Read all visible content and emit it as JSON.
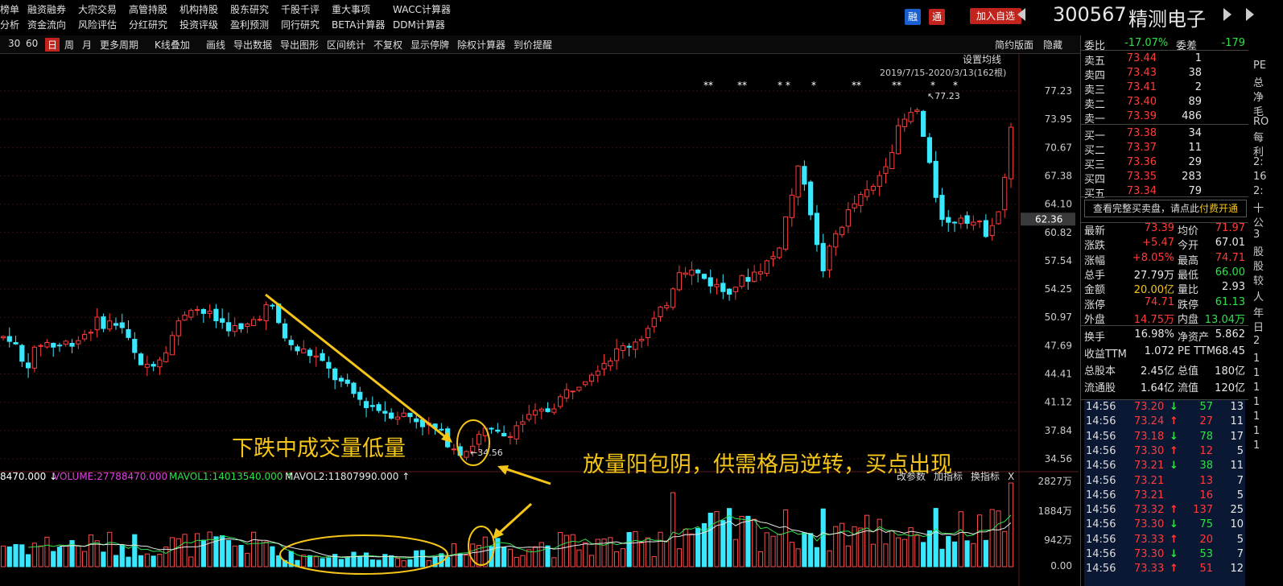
{
  "menu": {
    "row1": [
      "榜单",
      "融资融券",
      "大宗交易",
      "高管持股",
      "机构持股",
      "股东研究",
      "千股千评",
      "重大事项",
      "WACC计算器"
    ],
    "row2": [
      "分析",
      "资金流向",
      "风险评估",
      "分红研究",
      "投资评级",
      "盈利预测",
      "同行研究",
      "BETA计算器",
      "DDM计算器"
    ]
  },
  "header": {
    "rong": "融",
    "tong": "通",
    "add_favorite": "加入自选",
    "stock_code": "300567",
    "stock_name": "精测电子",
    "colors": {
      "rong": "#1a5fd0",
      "tong": "#c0241c",
      "accent": "#c0241c"
    }
  },
  "toolbar": {
    "items": [
      "30",
      "60",
      "日",
      "周",
      "月",
      "更多周期",
      "K线叠加",
      "画线",
      "导出数据",
      "导出图形",
      "区间统计",
      "不复权",
      "显示停牌",
      "除权计算器",
      "到价提醒"
    ],
    "active": "日",
    "right_items": [
      "简约版面",
      "隐藏"
    ]
  },
  "chart": {
    "ma_setting": "设置均线",
    "range_label": "2019/7/15-2020/3/13(162根)",
    "stars": [
      "**",
      "**",
      "* *",
      "*",
      "**",
      "**",
      "*",
      "*",
      "**"
    ],
    "price_ticks": [
      "77.23",
      "73.95",
      "70.67",
      "67.38",
      "64.10",
      "60.82",
      "57.54",
      "54.25",
      "50.97",
      "47.69",
      "44.41",
      "41.12",
      "37.84",
      "34.56"
    ],
    "current_price_tag": "62.36",
    "high_label": "77.23",
    "low_label": "34.56",
    "annotation_left": "下跌中成交量低量",
    "annotation_right": "放量阳包阴，供需格局逆转，买点出现",
    "volume_header": {
      "prefix": "8470.000",
      "volume": "VOLUME:27788470.000",
      "mavol1": "MAVOL1:14013540.000",
      "mavol2": "MAVOL2:11807990.000"
    },
    "volume_buttons": [
      "改参数",
      "加指标",
      "换指标",
      "X"
    ],
    "volume_ticks": [
      "2827万",
      "1884万",
      "942万",
      "0.00"
    ]
  },
  "panel": {
    "weibi_label": "委比",
    "weibi_value": "-17.07%",
    "weicha_label": "委差",
    "weicha_value": "-179",
    "asks": [
      {
        "label": "卖五",
        "price": "73.44",
        "vol": "1"
      },
      {
        "label": "卖四",
        "price": "73.43",
        "vol": "38"
      },
      {
        "label": "卖三",
        "price": "73.41",
        "vol": "2"
      },
      {
        "label": "卖二",
        "price": "73.40",
        "vol": "89"
      },
      {
        "label": "卖一",
        "price": "73.39",
        "vol": "486"
      }
    ],
    "bids": [
      {
        "label": "买一",
        "price": "73.38",
        "vol": "34"
      },
      {
        "label": "买二",
        "price": "73.37",
        "vol": "11"
      },
      {
        "label": "买三",
        "price": "73.36",
        "vol": "29"
      },
      {
        "label": "买四",
        "price": "73.35",
        "vol": "283"
      },
      {
        "label": "买五",
        "price": "73.34",
        "vol": "79"
      }
    ],
    "depth_link": "查看完整买卖盘，请点此",
    "depth_link_highlight": "付费开通",
    "stats": [
      {
        "l1": "最新",
        "v1": "73.39",
        "c1": "red",
        "l2": "均价",
        "v2": "71.97",
        "c2": "red"
      },
      {
        "l1": "涨跌",
        "v1": "+5.47",
        "c1": "red",
        "l2": "今开",
        "v2": "67.01",
        "c2": "white"
      },
      {
        "l1": "涨幅",
        "v1": "+8.05%",
        "c1": "red",
        "l2": "最高",
        "v2": "74.71",
        "c2": "red"
      },
      {
        "l1": "总手",
        "v1": "27.79万",
        "c1": "white",
        "l2": "最低",
        "v2": "66.00",
        "c2": "green"
      },
      {
        "l1": "金额",
        "v1": "20.00亿",
        "c1": "yellow",
        "l2": "量比",
        "v2": "2.93",
        "c2": "white"
      },
      {
        "l1": "涨停",
        "v1": "74.71",
        "c1": "red",
        "l2": "跌停",
        "v2": "61.13",
        "c2": "green"
      },
      {
        "l1": "外盘",
        "v1": "14.75万",
        "c1": "red",
        "l2": "内盘",
        "v2": "13.04万",
        "c2": "green"
      }
    ],
    "stats2": [
      {
        "l1": "换手",
        "v1": "16.98%",
        "l2": "净资产",
        "v2": "5.862"
      },
      {
        "l1": "收益TTM",
        "v1": "1.072",
        "l2": "PE TTM",
        "v2": "68.45"
      },
      {
        "l1": "总股本",
        "v1": "2.45亿",
        "l2": "总值",
        "v2": "180亿"
      },
      {
        "l1": "流通股",
        "v1": "1.64亿",
        "l2": "流值",
        "v2": "120亿"
      }
    ],
    "ticks": [
      {
        "t": "14:56",
        "p": "73.20",
        "d": "down",
        "v": "57",
        "n": "13"
      },
      {
        "t": "14:56",
        "p": "73.24",
        "d": "up",
        "v": "27",
        "n": "11"
      },
      {
        "t": "14:56",
        "p": "73.18",
        "d": "down",
        "v": "78",
        "n": "17"
      },
      {
        "t": "14:56",
        "p": "73.30",
        "d": "up",
        "v": "12",
        "n": "5"
      },
      {
        "t": "14:56",
        "p": "73.21",
        "d": "down",
        "v": "38",
        "n": "11"
      },
      {
        "t": "14:56",
        "p": "73.21",
        "d": "",
        "v": "13",
        "n": "7"
      },
      {
        "t": "14:56",
        "p": "73.21",
        "d": "",
        "v": "16",
        "n": "5"
      },
      {
        "t": "14:56",
        "p": "73.32",
        "d": "up",
        "v": "137",
        "n": "25"
      },
      {
        "t": "14:56",
        "p": "73.30",
        "d": "down",
        "v": "75",
        "n": "10"
      },
      {
        "t": "14:56",
        "p": "73.33",
        "d": "up",
        "v": "20",
        "n": "5"
      },
      {
        "t": "14:56",
        "p": "73.30",
        "d": "down",
        "v": "53",
        "n": "7"
      },
      {
        "t": "14:56",
        "p": "73.33",
        "d": "up",
        "v": "51",
        "n": "12"
      }
    ],
    "edge_chars": [
      "PE",
      "总",
      "净",
      "毛",
      "RO",
      "每",
      "利",
      "2:",
      "16",
      "2:",
      "十",
      "公",
      "3",
      "股",
      "股",
      "较",
      "人",
      "年",
      "日",
      "2",
      "1",
      "1",
      "1",
      "1",
      "1",
      "1",
      "1"
    ]
  }
}
